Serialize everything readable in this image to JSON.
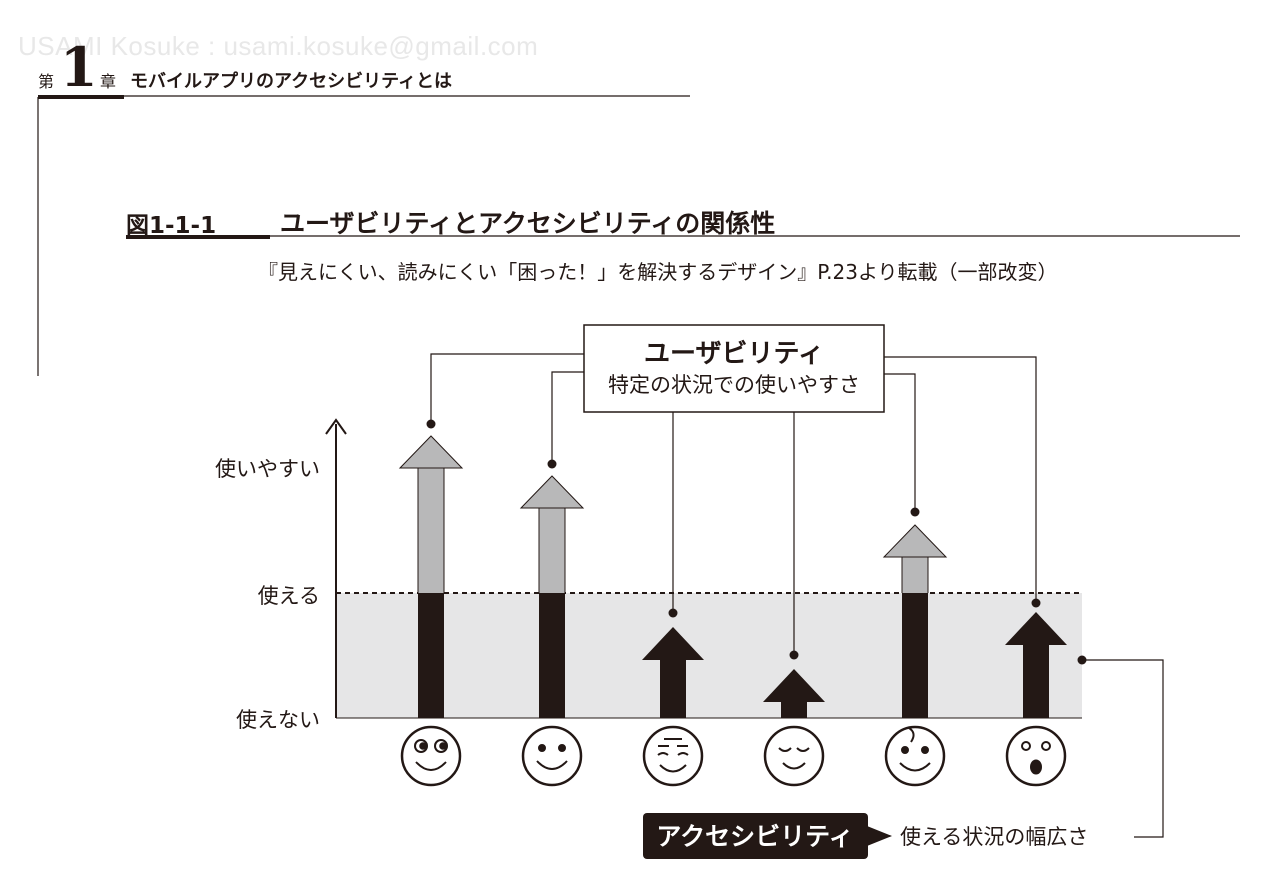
{
  "watermark": "USAMI Kosuke : usami.kosuke@gmail.com",
  "chapter": {
    "prefix": "第",
    "number": "1",
    "suffix": "章",
    "title": "モバイルアプリのアクセシビリティとは"
  },
  "figure": {
    "label": "図1-1-1",
    "title": "ユーザビリティとアクセシビリティの関係性",
    "source": "『見えにくい、読みにくい「困った！」を解決するデザイン』P.23より転載（一部改変）"
  },
  "diagram": {
    "usability_box": {
      "title": "ユーザビリティ",
      "subtitle": "特定の状況での使いやすさ"
    },
    "y_labels": {
      "high": "使いやすい",
      "mid": "使える",
      "low": "使えない"
    },
    "accessibility": {
      "tag": "アクセシビリティ",
      "description": "使える状況の幅広さ"
    },
    "colors": {
      "gray_arrow": "#b8b8b9",
      "black": "#231815",
      "band": "#e6e6e7"
    },
    "faces": [
      "wide-eyed-smile-face",
      "smile-face",
      "squinting-face",
      "sleepy-face",
      "sweating-face",
      "surprised-face"
    ]
  }
}
